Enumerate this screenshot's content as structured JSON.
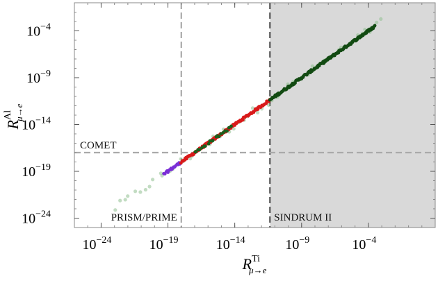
{
  "chart_data": {
    "type": "scatter",
    "log_x": true,
    "log_y": true,
    "xlim": [
      1e-26,
      10.0
    ],
    "ylim": [
      1e-25,
      0.1
    ],
    "x_ticks": [
      {
        "value": 1e-24,
        "base": "10",
        "exp": "−24"
      },
      {
        "value": 1e-19,
        "base": "10",
        "exp": "−19"
      },
      {
        "value": 1e-14,
        "base": "10",
        "exp": "−14"
      },
      {
        "value": 1e-09,
        "base": "10",
        "exp": "−9"
      },
      {
        "value": 0.0001,
        "base": "10",
        "exp": "−4"
      }
    ],
    "y_ticks": [
      {
        "value": 1e-24,
        "base": "10",
        "exp": "−24"
      },
      {
        "value": 1e-19,
        "base": "10",
        "exp": "−19"
      },
      {
        "value": 1e-14,
        "base": "10",
        "exp": "−14"
      },
      {
        "value": 1e-09,
        "base": "10",
        "exp": "−9"
      },
      {
        "value": 0.0001,
        "base": "10",
        "exp": "−4"
      }
    ],
    "xlabel": {
      "main": "R",
      "sup": "Ti",
      "sub": "μ→e"
    },
    "ylabel": {
      "main": "R",
      "sup": "Al",
      "sub": "μ→e"
    },
    "shaded_region": {
      "x_min": 4.3e-12,
      "label": "SINDRUM II",
      "color": "#d9d9d9"
    },
    "reference_lines": [
      {
        "orientation": "vertical",
        "value": 4.3e-12,
        "color": "#555555",
        "label": "SINDRUM II"
      },
      {
        "orientation": "vertical",
        "value": 1e-18,
        "color": "#aaaaaa",
        "label": "PRISM/PRIME"
      },
      {
        "orientation": "horizontal",
        "value": 1e-17,
        "color": "#aaaaaa",
        "label": "COMET"
      }
    ],
    "annotations": [
      "COMET",
      "PRISM/PRIME",
      "SINDRUM II"
    ],
    "series": [
      {
        "color": "#8fc08f",
        "x_range": [
          1e-23,
          0.001
        ],
        "y_offset": 0.35,
        "count": 55,
        "opacity": 0.55,
        "size": 2.6
      },
      {
        "color": "#7b2fd6",
        "x_range": [
          5e-20,
          1e-18
        ],
        "y_offset": 0.0,
        "count": 26,
        "opacity": 1,
        "size": 2.3
      },
      {
        "color": "#d91a1a",
        "x_range": [
          1e-18,
          4.3e-12
        ],
        "y_offset": 0.0,
        "count": 110,
        "opacity": 1,
        "size": 2.4
      },
      {
        "color": "#1b5e1b",
        "x_range": [
          1e-17,
          5e-15
        ],
        "y_offset": 0.0,
        "count": 20,
        "opacity": 1,
        "size": 2.4
      },
      {
        "color": "#124a12",
        "x_range": [
          4.3e-12,
          0.0003
        ],
        "y_offset": 0.0,
        "count": 170,
        "opacity": 1,
        "size": 2.4
      }
    ],
    "relation": {
      "slope": 1.0,
      "intercept_log10": 0.0
    }
  }
}
